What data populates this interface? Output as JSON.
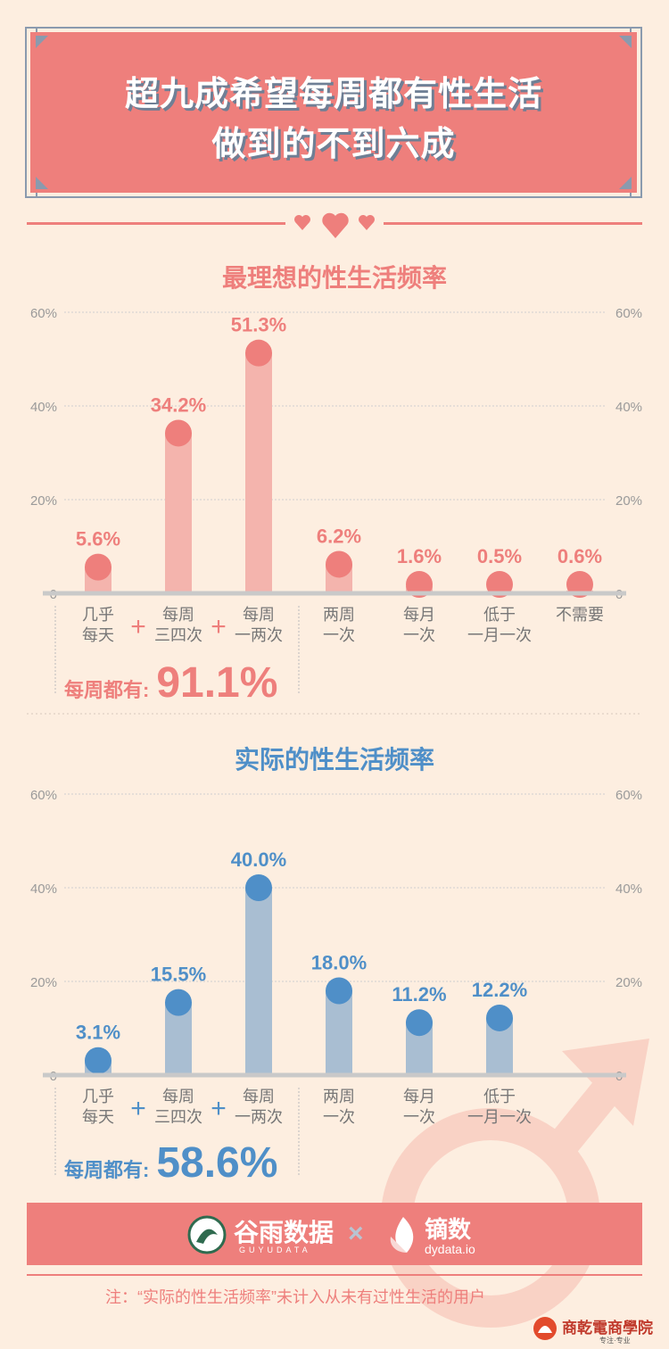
{
  "header": {
    "title_line1": "超九成希望每周都有性生活",
    "title_line2": "做到的不到六成"
  },
  "colors": {
    "pink": "#ee7f7c",
    "pink_bar": "#f4b4ad",
    "blue": "#4f8fc8",
    "blue_bar": "#a9bed2",
    "bg": "#fdeee0",
    "axis": "#c9c9c9"
  },
  "chart_data": [
    {
      "type": "bar",
      "title": "最理想的性生活频率",
      "categories": [
        "几乎\n每天",
        "每周\n三四次",
        "每周\n一两次",
        "两周\n一次",
        "每月\n一次",
        "低于\n一月一次",
        "不需要"
      ],
      "values": [
        5.6,
        34.2,
        51.3,
        6.2,
        1.6,
        0.5,
        0.6
      ],
      "value_labels": [
        "5.6%",
        "34.2%",
        "51.3%",
        "6.2%",
        "1.6%",
        "0.5%",
        "0.6%"
      ],
      "ylim": [
        0,
        60
      ],
      "yticks": [
        "0",
        "20%",
        "40%",
        "60%"
      ],
      "grid": true,
      "summary_label": "每周都有:",
      "summary_value": "91.1%"
    },
    {
      "type": "bar",
      "title": "实际的性生活频率",
      "categories": [
        "几乎\n每天",
        "每周\n三四次",
        "每周\n一两次",
        "两周\n一次",
        "每月\n一次",
        "低于\n一月一次"
      ],
      "values": [
        3.1,
        15.5,
        40.0,
        18.0,
        11.2,
        12.2
      ],
      "value_labels": [
        "3.1%",
        "15.5%",
        "40.0%",
        "18.0%",
        "11.2%",
        "12.2%"
      ],
      "ylim": [
        0,
        60
      ],
      "yticks": [
        "0",
        "20%",
        "40%",
        "60%"
      ],
      "grid": true,
      "summary_label": "每周都有:",
      "summary_value": "58.6%"
    }
  ],
  "plus_sign": "+",
  "footer": {
    "brand1": "谷雨数据",
    "brand1_sub": "GUYUDATA",
    "times": "×",
    "brand2": "镝数",
    "brand2_sub": "dydata.io",
    "note": "注：“实际的性生活频率”未计入从未有过性生活的用户",
    "watermark": "商乾電商學院",
    "watermark_sub": "专注·专业"
  }
}
